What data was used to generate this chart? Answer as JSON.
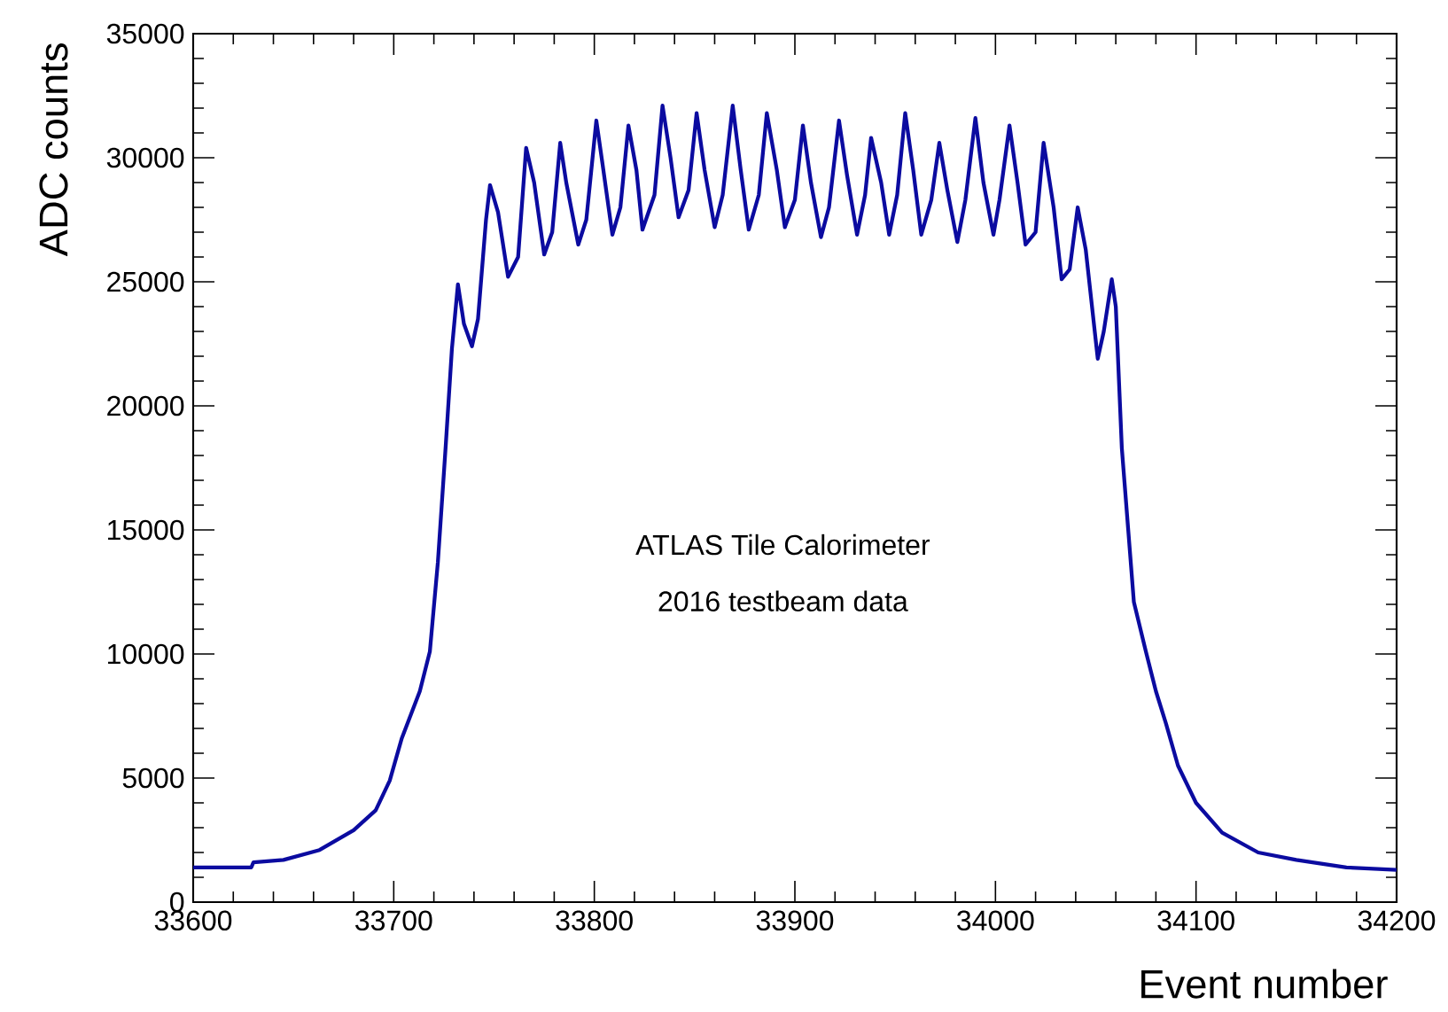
{
  "chart_data": {
    "type": "line",
    "xlabel": "Event number",
    "ylabel": "ADC counts",
    "annotations": [
      "ATLAS Tile Calorimeter",
      "2016 testbeam data"
    ],
    "xlim": [
      33600,
      34200
    ],
    "ylim": [
      0,
      35000
    ],
    "xticks": [
      33600,
      33700,
      33800,
      33900,
      34000,
      34100,
      34200
    ],
    "yticks": [
      0,
      5000,
      10000,
      15000,
      20000,
      25000,
      30000,
      35000
    ],
    "x": [
      33600,
      33629,
      33630,
      33645,
      33663,
      33680,
      33691,
      33698,
      33704,
      33713,
      33718,
      33722,
      33726,
      33729,
      33732,
      33735,
      33739,
      33742,
      33746,
      33748,
      33752,
      33757,
      33762,
      33766,
      33770,
      33775,
      33779,
      33783,
      33786,
      33792,
      33796,
      33801,
      33804,
      33809,
      33813,
      33817,
      33821,
      33824,
      33830,
      33834,
      33838,
      33842,
      33847,
      33851,
      33855,
      33860,
      33864,
      33869,
      33873,
      33877,
      33882,
      33886,
      33891,
      33895,
      33900,
      33904,
      33908,
      33913,
      33917,
      33922,
      33926,
      33931,
      33935,
      33938,
      33943,
      33947,
      33951,
      33955,
      33959,
      33963,
      33968,
      33972,
      33976,
      33981,
      33985,
      33990,
      33994,
      33999,
      34002,
      34007,
      34011,
      34015,
      34020,
      34024,
      34029,
      34033,
      34037,
      34041,
      34045,
      34051,
      34054,
      34058,
      34060,
      34063,
      34069,
      34075,
      34080,
      34085,
      34091,
      34100,
      34113,
      34131,
      34150,
      34175,
      34200
    ],
    "series": [
      {
        "color": "#0b0ba0",
        "values": [
          1400,
          1400,
          1600,
          1700,
          2100,
          2900,
          3700,
          4900,
          6600,
          8500,
          10100,
          13700,
          18500,
          22300,
          24900,
          23300,
          22400,
          23500,
          27500,
          28900,
          27800,
          25200,
          26000,
          30400,
          29000,
          26100,
          27000,
          30600,
          29000,
          26500,
          27500,
          31500,
          29800,
          26900,
          28000,
          31300,
          29500,
          27100,
          28500,
          32100,
          30000,
          27600,
          28700,
          31800,
          29500,
          27200,
          28500,
          32100,
          29500,
          27100,
          28500,
          31800,
          29500,
          27200,
          28300,
          31300,
          29000,
          26800,
          28000,
          31500,
          29300,
          26900,
          28500,
          30800,
          29000,
          26900,
          28500,
          31800,
          29500,
          26900,
          28300,
          30600,
          28700,
          26600,
          28300,
          31600,
          29000,
          26900,
          28300,
          31300,
          29000,
          26500,
          27000,
          30600,
          28000,
          25100,
          25500,
          28000,
          26300,
          21900,
          23000,
          25100,
          24000,
          18300,
          12100,
          10100,
          8500,
          7200,
          5500,
          4000,
          2800,
          2000,
          1700,
          1400,
          1300
        ]
      }
    ]
  }
}
